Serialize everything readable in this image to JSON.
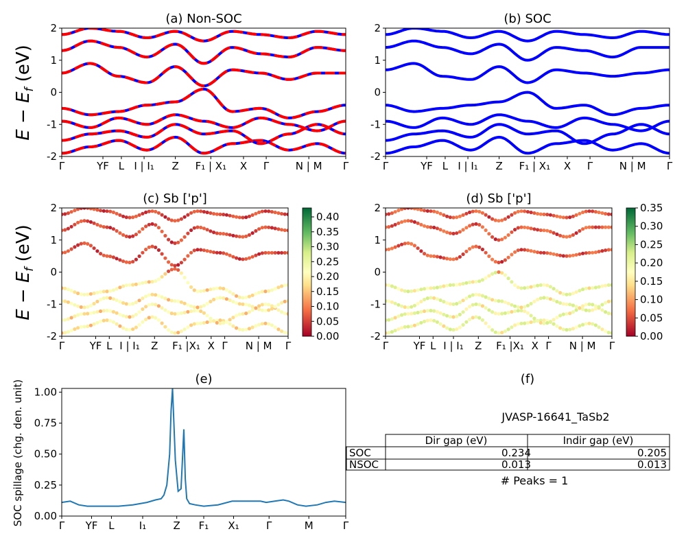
{
  "figure_title": "JVASP-16641_TaSb2",
  "colors": {
    "soc_band": "#0000ff",
    "nsoc_band": "#ff0000",
    "spillage_line": "#1f77b4"
  },
  "ylabel_band": "E − E_f (eV)",
  "kpath_top": [
    "Γ",
    "YF",
    "L",
    "I | I₁",
    "Z",
    "F₁ | X₁",
    "X",
    "Γ",
    "N | M",
    "Γ"
  ],
  "kpath_mid": [
    "Γ",
    "YF",
    "L",
    "I | I₁",
    "Z",
    "F₁ |X₁",
    "X",
    "Γ",
    "N | M",
    "Γ"
  ],
  "kpath_bottom": [
    "Γ",
    "YF",
    "L",
    "I₁",
    "Z",
    "F₁",
    "X₁",
    "Γ",
    "M",
    "Γ"
  ],
  "panels": {
    "a": {
      "title": "(a) Non-SOC"
    },
    "b": {
      "title": "(b) SOC"
    },
    "c": {
      "title": "(c)  Sb ['p']",
      "colorbar_ticks": [
        "0.00",
        "0.05",
        "0.10",
        "0.15",
        "0.20",
        "0.25",
        "0.30",
        "0.35",
        "0.40"
      ]
    },
    "d": {
      "title": "(d) Sb ['p']",
      "colorbar_ticks": [
        "0.00",
        "0.05",
        "0.10",
        "0.15",
        "0.20",
        "0.25",
        "0.30",
        "0.35"
      ]
    },
    "e": {
      "title": "(e)",
      "ylabel": "SOC spillage (chg. den. unit)"
    },
    "f": {
      "title": "(f)"
    }
  },
  "table": {
    "headers": [
      "",
      "Dir gap (eV)",
      "Indir gap (eV)"
    ],
    "rows": [
      {
        "label": "SOC",
        "dir": "0.234",
        "indir": "0.205"
      },
      {
        "label": "NSOC",
        "dir": "0.013",
        "indir": "0.013"
      }
    ],
    "peaks": "# Peaks = 1"
  },
  "chart_data": [
    {
      "type": "line",
      "title": "(a) Non-SOC",
      "ylabel": "E − E_f (eV)",
      "ylim": [
        -2,
        2
      ],
      "yticks": [
        -2,
        -1,
        0,
        1,
        2
      ],
      "series": [
        {
          "band": 1,
          "x": [
            0,
            0.1,
            0.2,
            0.3,
            0.4,
            0.5,
            0.6,
            0.7,
            0.8,
            0.9,
            1.0
          ],
          "y": [
            -1.9,
            -1.7,
            -1.5,
            -1.8,
            -1.4,
            -1.9,
            -1.6,
            -1.5,
            -1.8,
            -1.6,
            -1.9
          ]
        },
        {
          "band": 2,
          "x": [
            0,
            0.1,
            0.2,
            0.3,
            0.4,
            0.5,
            0.6,
            0.7,
            0.8,
            0.9,
            1.0
          ],
          "y": [
            -1.5,
            -1.3,
            -1.2,
            -1.4,
            -1.0,
            -1.3,
            -1.2,
            -1.6,
            -1.3,
            -1.0,
            -1.3
          ]
        },
        {
          "band": 3,
          "x": [
            0,
            0.1,
            0.2,
            0.3,
            0.4,
            0.5,
            0.6,
            0.7,
            0.8,
            0.9,
            1.0
          ],
          "y": [
            -0.9,
            -1.1,
            -0.8,
            -1.0,
            -0.7,
            -0.9,
            -1.1,
            -0.8,
            -1.0,
            -1.2,
            -0.9
          ]
        },
        {
          "band": 4,
          "x": [
            0,
            0.1,
            0.2,
            0.3,
            0.4,
            0.5,
            0.6,
            0.7,
            0.8,
            0.9,
            1.0
          ],
          "y": [
            -0.5,
            -0.7,
            -0.6,
            -0.4,
            -0.3,
            0.1,
            -0.6,
            -0.5,
            -0.8,
            -0.6,
            -0.4
          ]
        },
        {
          "band": 5,
          "x": [
            0,
            0.1,
            0.2,
            0.3,
            0.4,
            0.5,
            0.6,
            0.7,
            0.8,
            0.9,
            1.0
          ],
          "y": [
            0.6,
            0.9,
            0.5,
            0.3,
            0.8,
            0.2,
            0.7,
            0.6,
            0.4,
            0.6,
            0.6
          ]
        },
        {
          "band": 6,
          "x": [
            0,
            0.1,
            0.2,
            0.3,
            0.4,
            0.5,
            0.6,
            0.7,
            0.8,
            0.9,
            1.0
          ],
          "y": [
            1.3,
            1.6,
            1.4,
            1.1,
            1.5,
            0.9,
            1.4,
            1.2,
            1.1,
            1.4,
            1.3
          ]
        },
        {
          "band": 7,
          "x": [
            0,
            0.1,
            0.2,
            0.3,
            0.4,
            0.5,
            0.6,
            0.7,
            0.8,
            0.9,
            1.0
          ],
          "y": [
            1.8,
            2.0,
            1.9,
            1.7,
            1.9,
            1.6,
            1.9,
            1.8,
            1.7,
            1.9,
            1.8
          ]
        }
      ]
    },
    {
      "type": "line",
      "title": "(b) SOC",
      "ylim": [
        -2,
        2
      ],
      "yticks": [
        -2,
        -1,
        0,
        1,
        2
      ],
      "series": [
        {
          "band": 1,
          "x": [
            0,
            0.1,
            0.2,
            0.3,
            0.4,
            0.5,
            0.6,
            0.7,
            0.8,
            0.9,
            1.0
          ],
          "y": [
            -1.9,
            -1.7,
            -1.5,
            -1.8,
            -1.4,
            -1.9,
            -1.6,
            -1.5,
            -1.8,
            -1.6,
            -1.9
          ]
        },
        {
          "band": 2,
          "x": [
            0,
            0.1,
            0.2,
            0.3,
            0.4,
            0.5,
            0.6,
            0.7,
            0.8,
            0.9,
            1.0
          ],
          "y": [
            -1.5,
            -1.3,
            -1.2,
            -1.4,
            -1.0,
            -1.3,
            -1.2,
            -1.6,
            -1.3,
            -1.0,
            -1.3
          ]
        },
        {
          "band": 3,
          "x": [
            0,
            0.1,
            0.2,
            0.3,
            0.4,
            0.5,
            0.6,
            0.7,
            0.8,
            0.9,
            1.0
          ],
          "y": [
            -0.9,
            -1.1,
            -0.8,
            -1.0,
            -0.7,
            -0.9,
            -1.1,
            -0.8,
            -1.0,
            -1.2,
            -0.9
          ]
        },
        {
          "band": 4,
          "x": [
            0,
            0.1,
            0.2,
            0.3,
            0.4,
            0.5,
            0.6,
            0.7,
            0.8,
            0.9,
            1.0
          ],
          "y": [
            -0.4,
            -0.6,
            -0.5,
            -0.4,
            -0.3,
            0.0,
            -0.5,
            -0.4,
            -0.7,
            -0.5,
            -0.4
          ]
        },
        {
          "band": 5,
          "x": [
            0,
            0.1,
            0.2,
            0.3,
            0.4,
            0.5,
            0.6,
            0.7,
            0.8,
            0.9,
            1.0
          ],
          "y": [
            0.7,
            0.9,
            0.5,
            0.4,
            0.8,
            0.3,
            0.7,
            0.6,
            0.5,
            0.6,
            0.7
          ]
        },
        {
          "band": 6,
          "x": [
            0,
            0.1,
            0.2,
            0.3,
            0.4,
            0.5,
            0.6,
            0.7,
            0.8,
            0.9,
            1.0
          ],
          "y": [
            1.4,
            1.6,
            1.4,
            1.2,
            1.5,
            1.0,
            1.4,
            1.3,
            1.1,
            1.4,
            1.4
          ]
        },
        {
          "band": 7,
          "x": [
            0,
            0.1,
            0.2,
            0.3,
            0.4,
            0.5,
            0.6,
            0.7,
            0.8,
            0.9,
            1.0
          ],
          "y": [
            1.8,
            2.0,
            1.9,
            1.7,
            1.9,
            1.6,
            1.9,
            1.8,
            1.7,
            1.9,
            1.8
          ]
        }
      ]
    },
    {
      "type": "scatter",
      "title": "(c)  Sb ['p']",
      "ylim": [
        -2,
        2
      ],
      "colorbar_range": [
        0,
        0.43
      ],
      "note_bands": "valence bands weight ~0.15-0.25, conduction bands ~0.0-0.08"
    },
    {
      "type": "scatter",
      "title": "(d) Sb ['p']",
      "ylim": [
        -2,
        2
      ],
      "colorbar_range": [
        0,
        0.35
      ]
    },
    {
      "type": "line",
      "title": "(e)",
      "ylabel": "SOC spillage (chg. den. unit)",
      "ylim": [
        0,
        1.03
      ],
      "yticks": [
        0.0,
        0.25,
        0.5,
        0.75,
        1.0
      ],
      "x": [
        0,
        0.03,
        0.06,
        0.09,
        0.12,
        0.15,
        0.2,
        0.25,
        0.3,
        0.33,
        0.35,
        0.36,
        0.37,
        0.38,
        0.385,
        0.39,
        0.4,
        0.41,
        0.42,
        0.425,
        0.43,
        0.435,
        0.44,
        0.45,
        0.47,
        0.5,
        0.55,
        0.6,
        0.62,
        0.65,
        0.68,
        0.7,
        0.72,
        0.75,
        0.78,
        0.8,
        0.83,
        0.86,
        0.9,
        0.93,
        0.96,
        1.0
      ],
      "y": [
        0.11,
        0.12,
        0.09,
        0.08,
        0.08,
        0.08,
        0.08,
        0.09,
        0.11,
        0.13,
        0.14,
        0.17,
        0.25,
        0.5,
        0.85,
        1.03,
        0.45,
        0.2,
        0.22,
        0.45,
        0.7,
        0.3,
        0.14,
        0.1,
        0.09,
        0.08,
        0.09,
        0.12,
        0.12,
        0.12,
        0.12,
        0.12,
        0.11,
        0.12,
        0.13,
        0.12,
        0.09,
        0.08,
        0.09,
        0.11,
        0.12,
        0.11
      ]
    },
    {
      "type": "table",
      "title": "JVASP-16641_TaSb2",
      "columns": [
        "",
        "Dir gap (eV)",
        "Indir gap (eV)"
      ],
      "rows": [
        [
          "SOC",
          0.234,
          0.205
        ],
        [
          "NSOC",
          0.013,
          0.013
        ]
      ]
    }
  ]
}
